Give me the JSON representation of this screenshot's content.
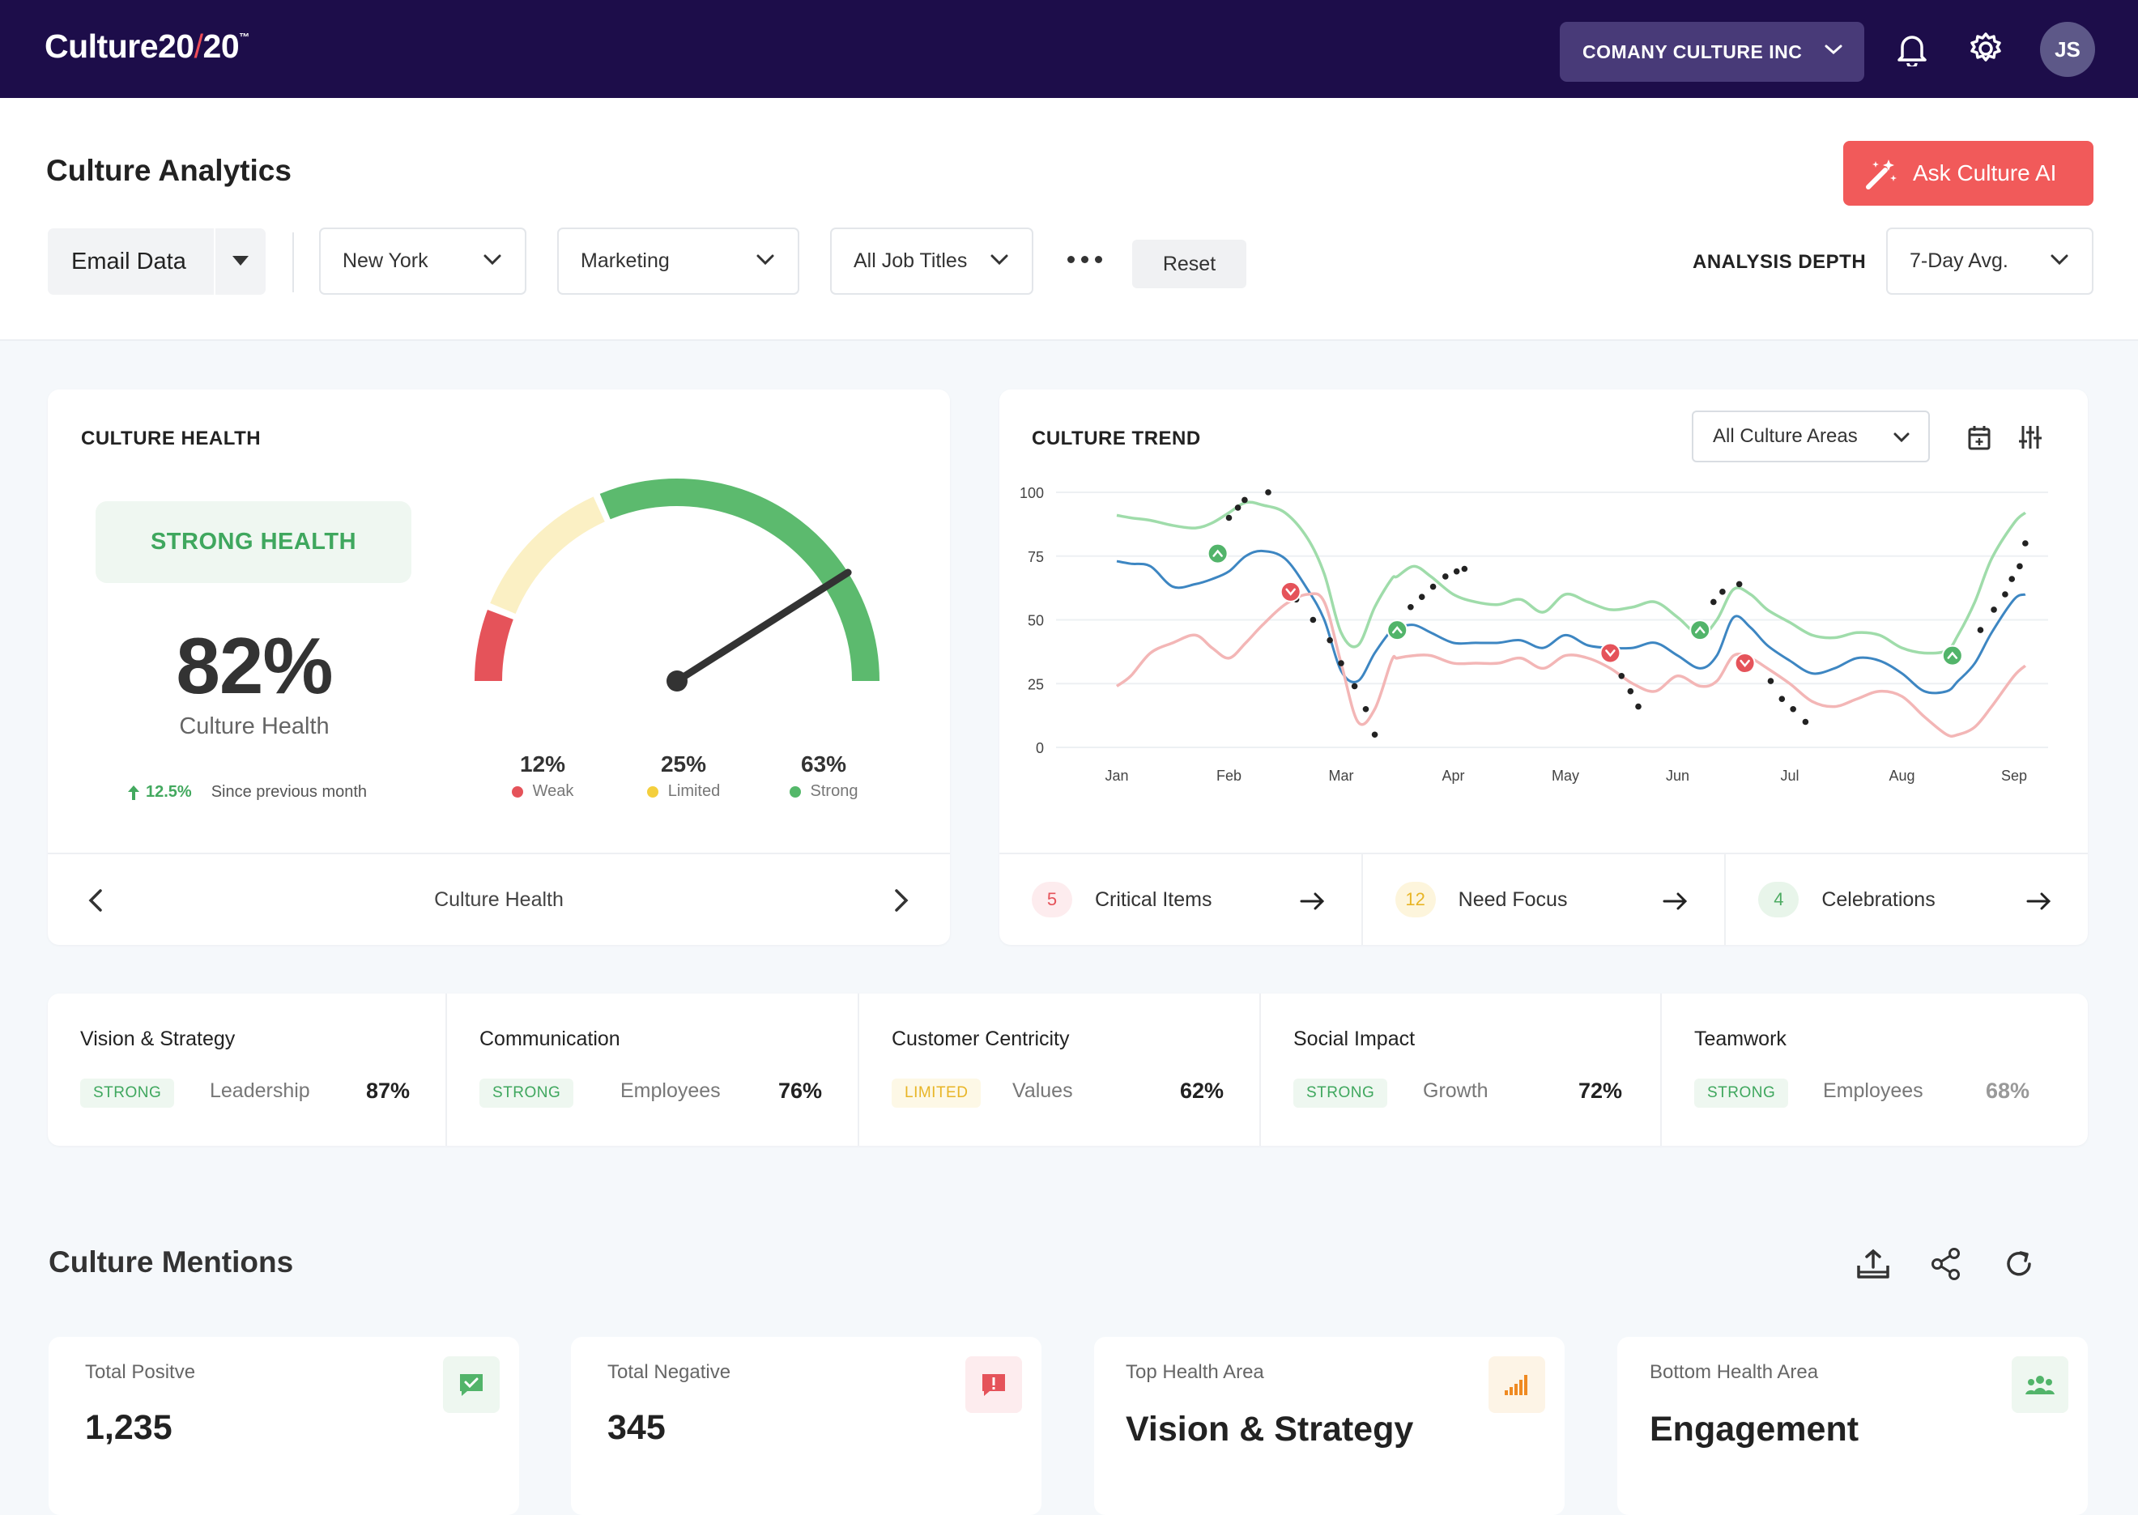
{
  "app": {
    "logo_main": "Culture20",
    "logo_slash": "/",
    "logo_tail": "20",
    "logo_tm": "™",
    "company": "COMANY CULTURE INC",
    "avatar_initials": "JS"
  },
  "header": {
    "title": "Culture Analytics",
    "ask_ai": "Ask Culture AI"
  },
  "filters": {
    "source": "Email Data",
    "location": "New York",
    "department": "Marketing",
    "job_titles": "All Job Titles",
    "reset": "Reset",
    "depth_label": "ANALYSIS DEPTH",
    "depth_value": "7-Day Avg."
  },
  "culture_health": {
    "title": "CULTURE HEALTH",
    "badge": "STRONG HEALTH",
    "percent": "82%",
    "subtitle": "Culture Health",
    "change": "12.5%",
    "change_label": "Since previous month",
    "gauge_value": 82,
    "stats": [
      {
        "value": "12%",
        "label": "Weak",
        "color": "#e5535a"
      },
      {
        "value": "25%",
        "label": "Limited",
        "color": "#f4cf3d"
      },
      {
        "value": "63%",
        "label": "Strong",
        "color": "#54b86a"
      }
    ],
    "footer": "Culture Health"
  },
  "culture_trend": {
    "title": "CULTURE TREND",
    "filter": "All Culture Areas",
    "footer": [
      {
        "count": "5",
        "label": "Critical Items",
        "color": "#e5535a",
        "bg": "#fdecee"
      },
      {
        "count": "12",
        "label": "Need Focus",
        "color": "#e8b526",
        "bg": "#fdf5dc"
      },
      {
        "count": "4",
        "label": "Celebrations",
        "color": "#4dab62",
        "bg": "#e8f5ea"
      }
    ]
  },
  "chart_data": {
    "type": "line",
    "categories": [
      "Jan",
      "Feb",
      "Mar",
      "Apr",
      "May",
      "Jun",
      "Jul",
      "Aug",
      "Sep"
    ],
    "y_ticks": [
      "100",
      "75",
      "50",
      "25",
      "0"
    ],
    "ylim": [
      0,
      100
    ],
    "grid": true,
    "x": [
      0.0,
      0.125,
      0.3,
      0.5,
      0.7,
      0.85,
      1.0,
      1.15,
      1.3,
      1.5,
      1.7,
      1.85,
      2.0,
      2.15,
      2.3,
      2.45,
      2.5,
      2.65,
      2.8,
      3.0,
      3.2,
      3.4,
      3.6,
      3.8,
      4.0,
      4.2,
      4.4,
      4.6,
      4.8,
      5.0,
      5.2,
      5.35,
      5.5,
      5.65,
      5.8,
      6.0,
      6.2,
      6.4,
      6.6,
      6.8,
      7.0,
      7.2,
      7.4,
      7.5,
      7.65,
      7.8,
      8.0,
      8.1
    ],
    "series": [
      {
        "color": "#9fdcaa",
        "values": [
          91,
          90,
          89,
          87,
          86,
          88,
          92,
          96,
          95,
          92,
          82,
          68,
          45,
          40,
          55,
          66,
          67,
          71,
          67,
          60,
          57,
          56,
          58,
          53,
          60,
          57,
          54,
          55,
          57,
          51,
          44,
          50,
          62,
          60,
          54,
          49,
          44,
          43,
          45,
          44,
          39,
          37,
          38,
          44,
          57,
          74,
          88,
          92
        ]
      },
      {
        "color": "#3d86c2",
        "values": [
          73,
          72,
          71,
          63,
          64,
          66,
          69,
          75,
          77,
          74,
          62,
          50,
          30,
          26,
          37,
          46,
          47,
          48,
          45,
          41,
          41,
          41,
          42,
          39,
          44,
          40,
          39,
          39,
          41,
          36,
          31,
          36,
          51,
          47,
          40,
          34,
          29,
          31,
          35,
          34,
          29,
          22,
          22,
          26,
          33,
          45,
          58,
          60
        ]
      },
      {
        "color": "#f3b6b6",
        "values": [
          24,
          28,
          37,
          41,
          44,
          39,
          35,
          41,
          48,
          56,
          60,
          57,
          33,
          10,
          15,
          34,
          35,
          36,
          36,
          33,
          33,
          33,
          35,
          31,
          36,
          35,
          31,
          25,
          22,
          28,
          24,
          26,
          36,
          35,
          31,
          25,
          18,
          16,
          19,
          22,
          20,
          12,
          5,
          5,
          8,
          16,
          28,
          32
        ]
      }
    ],
    "markers": [
      {
        "x": 0.9,
        "y": 76,
        "kind": "up"
      },
      {
        "x": 1.55,
        "y": 61,
        "kind": "down"
      },
      {
        "x": 2.5,
        "y": 46,
        "kind": "up"
      },
      {
        "x": 4.4,
        "y": 37,
        "kind": "down"
      },
      {
        "x": 5.2,
        "y": 46,
        "kind": "up"
      },
      {
        "x": 5.6,
        "y": 33,
        "kind": "down"
      },
      {
        "x": 7.45,
        "y": 36,
        "kind": "up"
      }
    ],
    "dotted_points": [
      [
        1.0,
        90
      ],
      [
        1.08,
        94
      ],
      [
        1.14,
        97
      ],
      [
        1.35,
        100
      ],
      [
        1.6,
        58
      ],
      [
        1.75,
        50
      ],
      [
        1.9,
        42
      ],
      [
        2.0,
        33
      ],
      [
        2.12,
        24
      ],
      [
        2.22,
        15
      ],
      [
        2.3,
        5
      ],
      [
        2.62,
        55
      ],
      [
        2.72,
        59
      ],
      [
        2.82,
        63
      ],
      [
        2.93,
        67
      ],
      [
        3.03,
        69
      ],
      [
        3.1,
        70
      ],
      [
        4.5,
        28
      ],
      [
        4.58,
        22
      ],
      [
        4.65,
        16
      ],
      [
        5.32,
        57
      ],
      [
        5.4,
        61
      ],
      [
        5.55,
        64
      ],
      [
        5.83,
        26
      ],
      [
        5.93,
        19
      ],
      [
        6.03,
        15
      ],
      [
        6.14,
        10
      ],
      [
        7.7,
        46
      ],
      [
        7.82,
        54
      ],
      [
        7.92,
        60
      ],
      [
        7.98,
        66
      ],
      [
        8.05,
        71
      ],
      [
        8.1,
        80
      ]
    ]
  },
  "culture_areas": [
    {
      "name": "Vision & Strategy",
      "status": "STRONG",
      "sub": "Leadership",
      "value": "87%"
    },
    {
      "name": "Communication",
      "status": "STRONG",
      "sub": "Employees",
      "value": "76%"
    },
    {
      "name": "Customer Centricity",
      "status": "LIMITED",
      "sub": "Values",
      "value": "62%"
    },
    {
      "name": "Social Impact",
      "status": "STRONG",
      "sub": "Growth",
      "value": "72%"
    },
    {
      "name": "Teamwork",
      "status": "STRONG",
      "sub": "Employees",
      "value": "68%"
    }
  ],
  "mentions": {
    "title": "Culture Mentions",
    "cards": [
      {
        "label": "Total Positve",
        "value": "1,235",
        "icon": "chat-check-icon"
      },
      {
        "label": "Total Negative",
        "value": "345",
        "icon": "chat-alert-icon"
      },
      {
        "label": "Top Health Area",
        "value": "Vision & Strategy",
        "icon": "bar-signal-icon"
      },
      {
        "label": "Bottom Health Area",
        "value": "Engagement",
        "icon": "people-icon"
      }
    ]
  },
  "colors": {
    "nav_bg": "#1d0d4a",
    "accent": "#f15a5a",
    "strong": "#54b86a",
    "limited": "#f4cf3d",
    "weak": "#e5535a"
  }
}
